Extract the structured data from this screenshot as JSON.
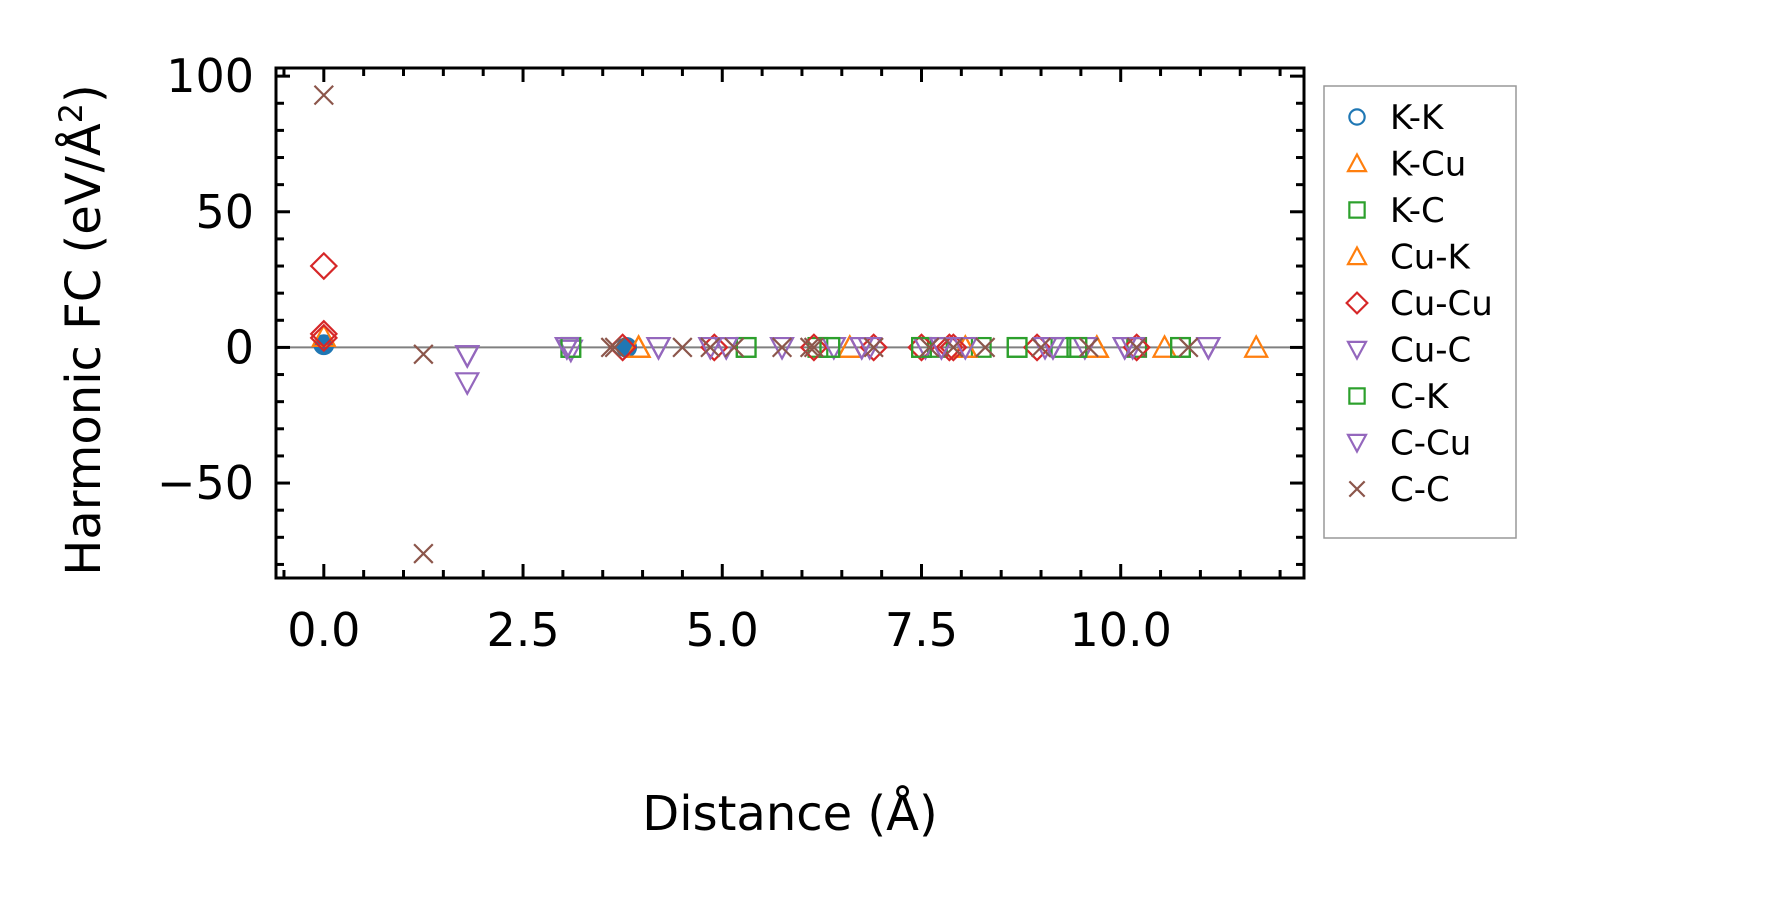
{
  "chart_data": {
    "type": "scatter",
    "title": "",
    "xlabel": "Distance (Å)",
    "ylabel_main": "Harmonic FC (eV/Å",
    "ylabel_sup": "2",
    "ylabel_close": ")",
    "xlim": [
      -0.6,
      12.3
    ],
    "ylim": [
      -85,
      103
    ],
    "xticks": [
      0.0,
      2.5,
      5.0,
      7.5,
      10.0
    ],
    "xtick_labels": [
      "0.0",
      "2.5",
      "5.0",
      "7.5",
      "10.0"
    ],
    "yticks": [
      -50,
      0,
      50,
      100
    ],
    "ytick_labels": [
      "−50",
      "0",
      "50",
      "100"
    ],
    "grid": false,
    "zero_line": true,
    "legend_position": "outside-right",
    "series": [
      {
        "name": "K-K",
        "marker": "circle",
        "color": "#1f77b4",
        "filled": true,
        "points": [
          [
            0.0,
            1.0
          ],
          [
            3.8,
            0.0
          ]
        ]
      },
      {
        "name": "K-Cu",
        "marker": "triangle-up",
        "color": "#ff7f0e",
        "points": [
          [
            3.95,
            0.0
          ],
          [
            6.6,
            0.0
          ],
          [
            8.05,
            0.0
          ],
          [
            9.7,
            0.0
          ],
          [
            10.55,
            0.0
          ],
          [
            11.7,
            0.0
          ]
        ]
      },
      {
        "name": "K-C",
        "marker": "square",
        "color": "#2ca02c",
        "points": [
          [
            3.1,
            0.0
          ],
          [
            5.3,
            0.0
          ],
          [
            6.2,
            0.0
          ],
          [
            6.35,
            0.0
          ],
          [
            7.5,
            0.0
          ],
          [
            7.7,
            0.0
          ],
          [
            8.25,
            0.0
          ],
          [
            8.7,
            0.0
          ],
          [
            9.25,
            0.0
          ],
          [
            9.45,
            0.0
          ],
          [
            10.2,
            0.0
          ],
          [
            10.75,
            0.0
          ]
        ]
      },
      {
        "name": "Cu-K",
        "marker": "triangle-up",
        "color": "#ff7f0e",
        "points": [
          [
            0.0,
            4.0
          ],
          [
            3.95,
            0.0
          ],
          [
            6.6,
            0.0
          ],
          [
            8.05,
            0.0
          ],
          [
            9.7,
            0.0
          ]
        ]
      },
      {
        "name": "Cu-Cu",
        "marker": "diamond",
        "color": "#d62728",
        "points": [
          [
            0.0,
            30.0
          ],
          [
            0.0,
            5.0
          ],
          [
            0.0,
            3.5
          ],
          [
            3.75,
            0.0
          ],
          [
            4.9,
            0.0
          ],
          [
            6.15,
            0.0
          ],
          [
            6.9,
            0.0
          ],
          [
            7.5,
            0.0
          ],
          [
            7.85,
            0.0
          ],
          [
            7.9,
            0.0
          ],
          [
            8.95,
            0.0
          ],
          [
            10.2,
            0.0
          ]
        ]
      },
      {
        "name": "Cu-C",
        "marker": "triangle-down",
        "color": "#9467bd",
        "points": [
          [
            1.8,
            -3.0
          ],
          [
            1.8,
            -13.0
          ],
          [
            3.05,
            0.0
          ],
          [
            3.1,
            -1.0
          ],
          [
            4.2,
            0.0
          ],
          [
            4.85,
            0.0
          ],
          [
            5.05,
            0.0
          ],
          [
            5.75,
            0.0
          ],
          [
            6.4,
            0.0
          ],
          [
            6.75,
            0.0
          ],
          [
            6.85,
            0.0
          ],
          [
            7.55,
            0.0
          ],
          [
            7.75,
            0.0
          ],
          [
            8.05,
            0.0
          ],
          [
            9.05,
            0.0
          ],
          [
            9.15,
            0.0
          ],
          [
            9.55,
            0.0
          ],
          [
            10.05,
            0.0
          ],
          [
            10.15,
            0.0
          ],
          [
            11.1,
            0.0
          ]
        ]
      },
      {
        "name": "C-K",
        "marker": "square",
        "color": "#2ca02c",
        "points": [
          [
            3.1,
            0.0
          ],
          [
            5.3,
            0.0
          ],
          [
            6.35,
            0.0
          ],
          [
            7.5,
            0.0
          ],
          [
            8.7,
            0.0
          ],
          [
            9.45,
            0.0
          ],
          [
            10.75,
            0.0
          ]
        ]
      },
      {
        "name": "C-Cu",
        "marker": "triangle-down",
        "color": "#9467bd",
        "points": [
          [
            1.8,
            -3.0
          ],
          [
            3.05,
            0.0
          ],
          [
            4.2,
            0.0
          ],
          [
            5.05,
            0.0
          ],
          [
            6.75,
            0.0
          ],
          [
            7.75,
            0.0
          ],
          [
            9.15,
            0.0
          ],
          [
            10.05,
            0.0
          ],
          [
            11.1,
            0.0
          ]
        ]
      },
      {
        "name": "C-C",
        "marker": "x",
        "color": "#8c564b",
        "points": [
          [
            0.0,
            93.0
          ],
          [
            1.25,
            -2.5
          ],
          [
            1.25,
            -76.0
          ],
          [
            3.6,
            0.0
          ],
          [
            3.65,
            0.0
          ],
          [
            4.5,
            0.0
          ],
          [
            4.85,
            0.0
          ],
          [
            5.15,
            0.0
          ],
          [
            5.75,
            0.0
          ],
          [
            6.1,
            0.0
          ],
          [
            6.15,
            0.0
          ],
          [
            6.9,
            0.0
          ],
          [
            7.6,
            0.0
          ],
          [
            7.9,
            0.0
          ],
          [
            8.3,
            0.0
          ],
          [
            9.0,
            0.0
          ],
          [
            9.6,
            0.0
          ],
          [
            10.2,
            0.0
          ],
          [
            10.85,
            0.0
          ]
        ]
      }
    ]
  }
}
